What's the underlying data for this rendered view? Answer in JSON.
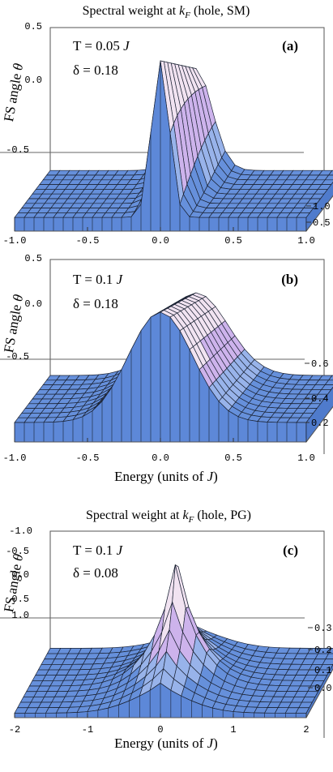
{
  "panels": [
    {
      "title_main": "Spectral weight at ",
      "title_k": "k",
      "title_sub": "F",
      "title_rest": " (hole, SM)",
      "ylabel_text": "FS angle ",
      "ylabel_sym": "θ",
      "xlabel": "",
      "label": "(a)",
      "temp_prefix": "T = 0.05 ",
      "temp_unit": "J",
      "delta": "δ = 0.18",
      "x_ticks": [
        "-1.0",
        "-0.5",
        "0.0",
        "0.5",
        "1.0"
      ],
      "theta_ticks": [
        "0.5",
        "0.0",
        "-0.5"
      ],
      "z_ticks": [
        "1.0",
        "0.5"
      ]
    },
    {
      "title_main": "",
      "title_k": "",
      "title_sub": "",
      "title_rest": "",
      "ylabel_text": "FS angle ",
      "ylabel_sym": "θ",
      "xlabel": "Energy (units of J)",
      "label": "(b)",
      "temp_prefix": "T = 0.1 ",
      "temp_unit": "J",
      "delta": "δ = 0.18",
      "x_ticks": [
        "-1.0",
        "-0.5",
        "0.0",
        "0.5",
        "1.0"
      ],
      "theta_ticks": [
        "0.5",
        "0.0",
        "-0.5"
      ],
      "z_ticks": [
        "0.6",
        "0.4",
        "0.2"
      ]
    },
    {
      "title_main": "Spectral weight at ",
      "title_k": "k",
      "title_sub": "F",
      "title_rest": " (hole, PG)",
      "ylabel_text": "FS angle ",
      "ylabel_sym": "θ",
      "xlabel": "Energy (units of J)",
      "label": "(c)",
      "temp_prefix": "T = 0.1 ",
      "temp_unit": "J",
      "delta": "δ = 0.08",
      "x_ticks": [
        "-2",
        "-1",
        "0",
        "1",
        "2"
      ],
      "theta_ticks": [
        "-1.0",
        "-0.5",
        "0.0",
        "0.5",
        "1.0"
      ],
      "z_ticks": [
        "0.3",
        "0.2",
        "0.1",
        "0.0"
      ]
    }
  ],
  "colors": {
    "surface_low": "#5a86d6",
    "surface_mid": "#9fb8ec",
    "surface_peak": "#f2e6f2",
    "surface_pink": "#c98ed8",
    "mesh": "#1a2233",
    "box": "#555555"
  },
  "chart_data": [
    {
      "type": "surface",
      "x_range": [
        -1.0,
        1.0
      ],
      "theta_range": [
        -0.5,
        0.5
      ],
      "z_range": [
        0,
        1.2
      ],
      "description_params": {
        "T": 0.05,
        "delta": 0.18
      }
    },
    {
      "type": "surface",
      "x_range": [
        -1.0,
        1.0
      ],
      "theta_range": [
        -0.5,
        0.5
      ],
      "z_range": [
        0.15,
        0.65
      ],
      "description_params": {
        "T": 0.1,
        "delta": 0.18
      }
    },
    {
      "type": "surface",
      "x_range": [
        -2,
        2
      ],
      "theta_range": [
        -1.0,
        1.0
      ],
      "z_range": [
        0,
        0.35
      ],
      "description_params": {
        "T": 0.1,
        "delta": 0.08
      }
    }
  ]
}
